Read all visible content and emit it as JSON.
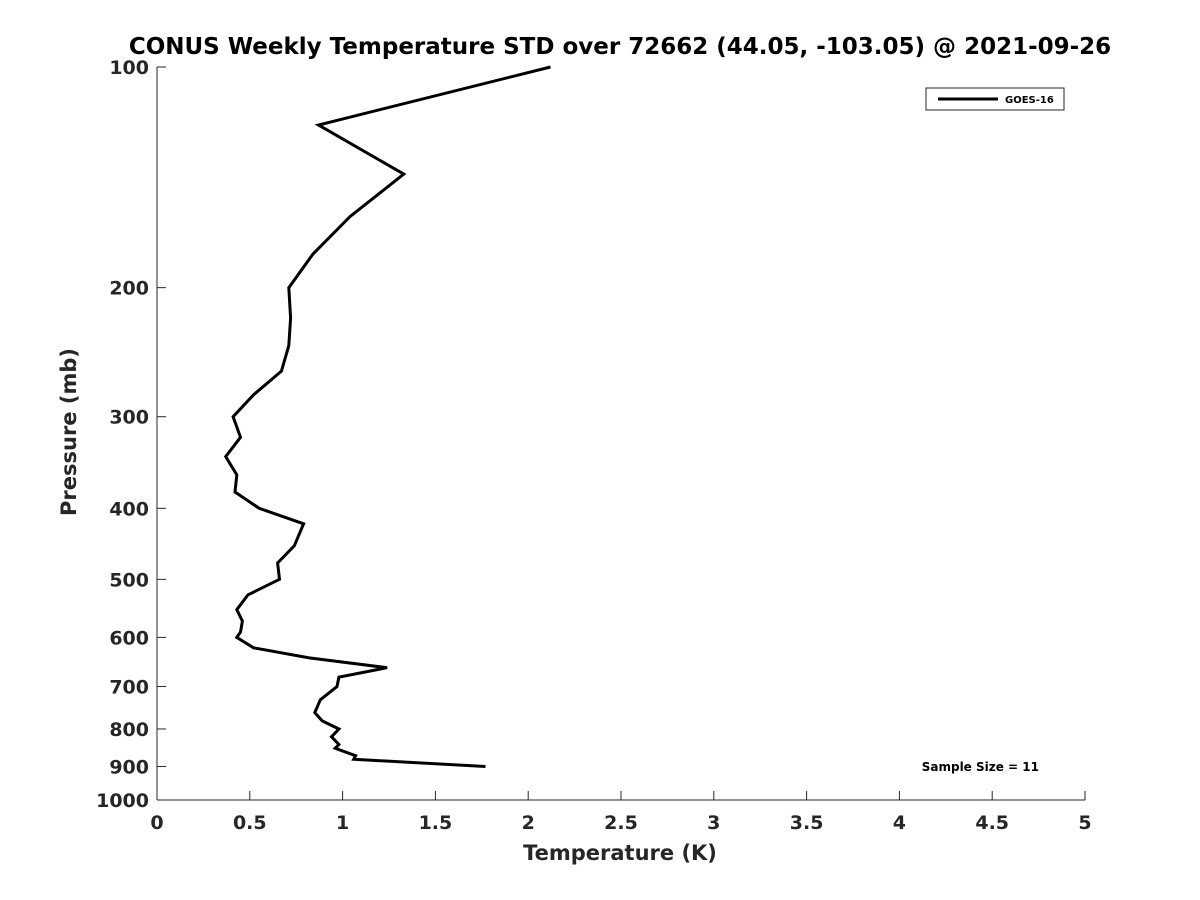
{
  "chart_data": {
    "type": "line",
    "title": "CONUS Weekly Temperature STD over 72662 (44.05, -103.05) @ 2021-09-26",
    "xlabel": "Temperature (K)",
    "ylabel": "Pressure (mb)",
    "xlim": [
      0,
      5
    ],
    "ylim": [
      100,
      1000
    ],
    "y_scale": "log",
    "y_reversed": true,
    "x_ticks": [
      0,
      0.5,
      1,
      1.5,
      2,
      2.5,
      3,
      3.5,
      4,
      4.5,
      5
    ],
    "x_tick_labels": [
      "0",
      "0.5",
      "1",
      "1.5",
      "2",
      "2.5",
      "3",
      "3.5",
      "4",
      "4.5",
      "5"
    ],
    "y_ticks": [
      100,
      200,
      300,
      400,
      500,
      600,
      700,
      800,
      900,
      1000
    ],
    "y_tick_labels": [
      "100",
      "200",
      "300",
      "400",
      "500",
      "600",
      "700",
      "800",
      "900",
      "1000"
    ],
    "grid": false,
    "legend_position": "top-right",
    "series": [
      {
        "name": "GOES-16",
        "color": "#000000",
        "points": [
          {
            "x": 2.12,
            "p": 100
          },
          {
            "x": 0.87,
            "p": 120
          },
          {
            "x": 1.33,
            "p": 140
          },
          {
            "x": 1.04,
            "p": 160
          },
          {
            "x": 0.84,
            "p": 180
          },
          {
            "x": 0.71,
            "p": 200
          },
          {
            "x": 0.72,
            "p": 220
          },
          {
            "x": 0.71,
            "p": 240
          },
          {
            "x": 0.67,
            "p": 260
          },
          {
            "x": 0.52,
            "p": 280
          },
          {
            "x": 0.41,
            "p": 300
          },
          {
            "x": 0.45,
            "p": 320
          },
          {
            "x": 0.37,
            "p": 340
          },
          {
            "x": 0.43,
            "p": 360
          },
          {
            "x": 0.42,
            "p": 380
          },
          {
            "x": 0.55,
            "p": 400
          },
          {
            "x": 0.79,
            "p": 420
          },
          {
            "x": 0.74,
            "p": 450
          },
          {
            "x": 0.65,
            "p": 475
          },
          {
            "x": 0.66,
            "p": 500
          },
          {
            "x": 0.49,
            "p": 525
          },
          {
            "x": 0.43,
            "p": 550
          },
          {
            "x": 0.46,
            "p": 570
          },
          {
            "x": 0.45,
            "p": 590
          },
          {
            "x": 0.43,
            "p": 600
          },
          {
            "x": 0.52,
            "p": 620
          },
          {
            "x": 0.82,
            "p": 640
          },
          {
            "x": 1.24,
            "p": 660
          },
          {
            "x": 0.98,
            "p": 680
          },
          {
            "x": 0.97,
            "p": 700
          },
          {
            "x": 0.88,
            "p": 730
          },
          {
            "x": 0.85,
            "p": 760
          },
          {
            "x": 0.89,
            "p": 780
          },
          {
            "x": 0.98,
            "p": 800
          },
          {
            "x": 0.94,
            "p": 820
          },
          {
            "x": 0.98,
            "p": 840
          },
          {
            "x": 0.96,
            "p": 850
          },
          {
            "x": 1.07,
            "p": 870
          },
          {
            "x": 1.06,
            "p": 880
          },
          {
            "x": 1.77,
            "p": 900
          }
        ]
      }
    ],
    "annotation": "Sample Size = 11"
  }
}
